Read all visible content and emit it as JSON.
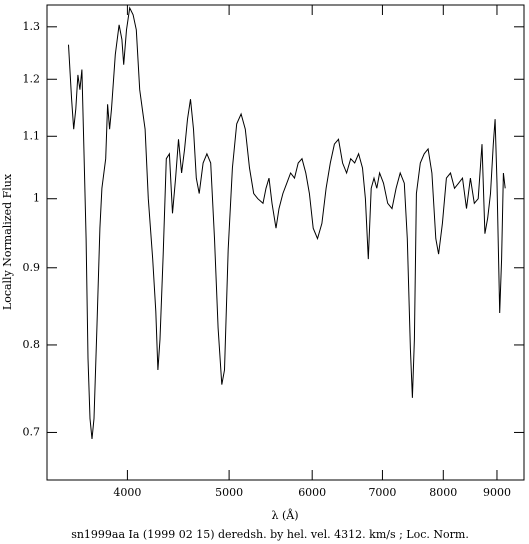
{
  "chart_data": {
    "type": "line",
    "title": "sn1999aa Ia (1999 02 15) deredsh. by hel. vel.  4312. km/s ;  Loc. Norm.",
    "x_label": "λ (Å)",
    "y_label": "Locally Normalized Flux",
    "xscale": "log",
    "yscale": "log",
    "color": "#000000",
    "xlim": [
      3353,
      9550
    ],
    "ylim": [
      0.651,
      1.344
    ],
    "xticks": [
      4000,
      5000,
      6000,
      7000,
      8000,
      9000
    ],
    "yticks": [
      0.7,
      0.8,
      0.9,
      1,
      1.1,
      1.2,
      1.3
    ],
    "x": [
      3515,
      3539,
      3555,
      3572,
      3588,
      3604,
      3620,
      3636,
      3653,
      3669,
      3685,
      3701,
      3717,
      3741,
      3766,
      3782,
      3814,
      3830,
      3847,
      3863,
      3895,
      3928,
      3952,
      3968,
      3992,
      4020,
      4050,
      4079,
      4109,
      4139,
      4158,
      4188,
      4228,
      4257,
      4277,
      4297,
      4327,
      4356,
      4386,
      4416,
      4446,
      4475,
      4505,
      4535,
      4564,
      4594,
      4624,
      4653,
      4683,
      4723,
      4762,
      4802,
      4842,
      4881,
      4921,
      4950,
      4990,
      5036,
      5084,
      5133,
      5181,
      5229,
      5277,
      5325,
      5386,
      5422,
      5458,
      5494,
      5542,
      5578,
      5627,
      5675,
      5723,
      5771,
      5819,
      5867,
      5916,
      5964,
      6014,
      6071,
      6129,
      6186,
      6243,
      6300,
      6357,
      6414,
      6471,
      6529,
      6586,
      6643,
      6700,
      6743,
      6786,
      6829,
      6871,
      6914,
      6957,
      7016,
      7082,
      7148,
      7213,
      7279,
      7344,
      7393,
      7443,
      7475,
      7508,
      7541,
      7607,
      7672,
      7738,
      7803,
      7869,
      7918,
      7984,
      8055,
      8127,
      8200,
      8273,
      8345,
      8418,
      8491,
      8564,
      8636,
      8709,
      8764,
      8818,
      8873,
      8927,
      8964,
      9000,
      9055,
      9091,
      9127,
      9164
    ],
    "values": [
      1.265,
      1.164,
      1.112,
      1.147,
      1.208,
      1.181,
      1.218,
      1.079,
      0.941,
      0.784,
      0.715,
      0.693,
      0.715,
      0.821,
      0.956,
      1.016,
      1.063,
      1.155,
      1.112,
      1.147,
      1.246,
      1.304,
      1.275,
      1.227,
      1.294,
      1.338,
      1.324,
      1.294,
      1.181,
      1.138,
      1.112,
      1.0,
      0.912,
      0.842,
      0.77,
      0.807,
      0.919,
      1.063,
      1.071,
      0.978,
      1.032,
      1.095,
      1.04,
      1.079,
      1.129,
      1.164,
      1.112,
      1.032,
      1.008,
      1.056,
      1.071,
      1.056,
      0.941,
      0.821,
      0.753,
      0.77,
      0.926,
      1.048,
      1.121,
      1.138,
      1.112,
      1.048,
      1.008,
      1.0,
      0.993,
      1.016,
      1.032,
      0.993,
      0.956,
      0.985,
      1.008,
      1.024,
      1.04,
      1.032,
      1.056,
      1.063,
      1.04,
      1.008,
      0.956,
      0.941,
      0.963,
      1.016,
      1.056,
      1.087,
      1.095,
      1.056,
      1.04,
      1.063,
      1.056,
      1.071,
      1.048,
      1.0,
      0.912,
      1.016,
      1.032,
      1.016,
      1.04,
      1.024,
      0.993,
      0.985,
      1.016,
      1.04,
      1.024,
      0.941,
      0.795,
      0.738,
      0.807,
      1.008,
      1.056,
      1.071,
      1.079,
      1.04,
      0.941,
      0.919,
      0.963,
      1.032,
      1.04,
      1.016,
      1.024,
      1.032,
      0.985,
      1.032,
      0.993,
      1.0,
      1.087,
      0.948,
      0.971,
      1.008,
      1.087,
      1.129,
      1.024,
      0.84,
      0.912,
      1.04,
      1.016
    ]
  }
}
